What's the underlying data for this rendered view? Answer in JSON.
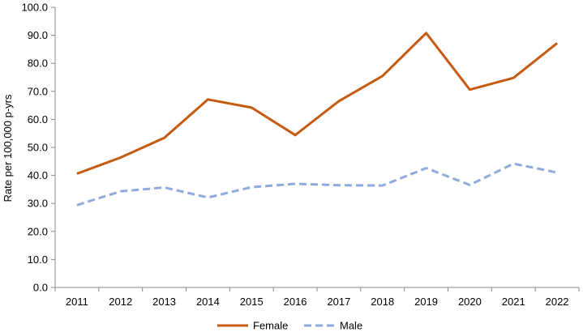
{
  "chart_data": {
    "type": "line",
    "title": "",
    "xlabel": "",
    "ylabel": "Rate per 100,000 p-yrs",
    "ylim": [
      0,
      100
    ],
    "y_ticks": [
      "0.0",
      "10.0",
      "20.0",
      "30.0",
      "40.0",
      "50.0",
      "60.0",
      "70.0",
      "80.0",
      "90.0",
      "100.0"
    ],
    "categories": [
      "2011",
      "2012",
      "2013",
      "2014",
      "2015",
      "2016",
      "2017",
      "2018",
      "2019",
      "2020",
      "2021",
      "2022"
    ],
    "legend_position": "bottom",
    "series": [
      {
        "name": "Female",
        "color": "#C55A11",
        "style": "solid",
        "values": [
          40.6,
          46.4,
          53.4,
          67.1,
          64.2,
          54.4,
          66.5,
          75.5,
          90.8,
          70.6,
          74.8,
          87.2
        ]
      },
      {
        "name": "Male",
        "color": "#8FAADC",
        "style": "dashed",
        "values": [
          29.4,
          34.3,
          35.7,
          32.1,
          35.8,
          37.0,
          36.5,
          36.4,
          42.6,
          36.6,
          44.2,
          41.0
        ]
      }
    ]
  }
}
